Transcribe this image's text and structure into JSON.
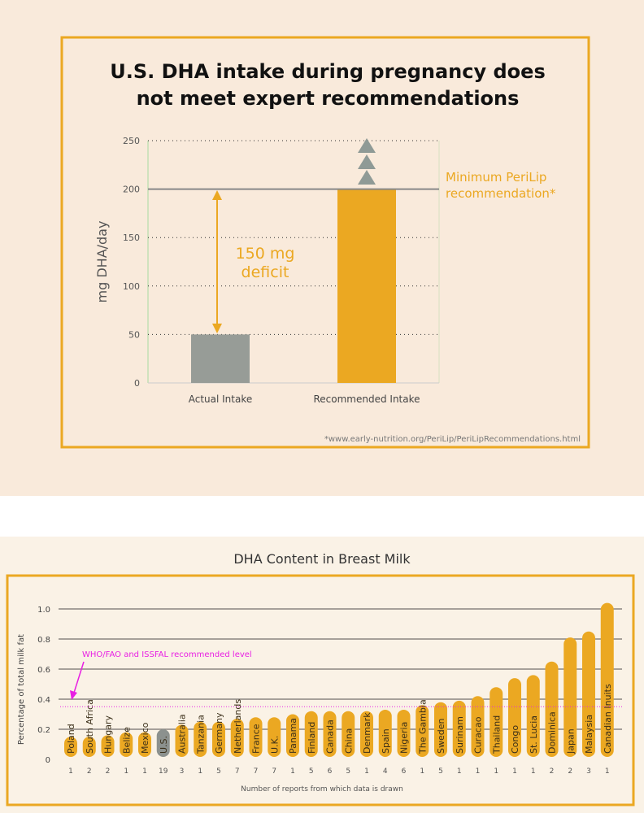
{
  "chart_data": [
    {
      "type": "bar",
      "title": "U.S. DHA intake during pregnancy does not meet expert recommendations",
      "title_lines": [
        "U.S. DHA intake during pregnancy does",
        "not meet expert recommendations"
      ],
      "ylabel": "mg DHA/day",
      "ylim": [
        0,
        250
      ],
      "yticks": [
        0,
        50,
        100,
        150,
        200,
        250
      ],
      "categories": [
        "Actual Intake",
        "Recommended Intake"
      ],
      "values": [
        50,
        200
      ],
      "colors": [
        "#979c97",
        "#eba822"
      ],
      "reference_line": {
        "value": 200,
        "label_lines": [
          "Minimum PeriLip",
          "recommendation*"
        ]
      },
      "annotation_lines": [
        "150 mg",
        "deficit"
      ],
      "footnote": "*www.early-nutrition.org/PeriLip/PeriLipRecommendations.html"
    },
    {
      "type": "bar",
      "title": "DHA Content in Breast Milk",
      "ylabel": "Percentage of total milk fat",
      "xlabel": "Number of reports from which data is drawn",
      "ylim": [
        0,
        1.0
      ],
      "yticks": [
        "0",
        "0.2",
        "0.4",
        "0.6",
        "0.8",
        "1.0"
      ],
      "categories": [
        "Poland",
        "South Africa",
        "Hungary",
        "Belize",
        "Mexico",
        "U.S.",
        "Australia",
        "Tanzania",
        "Germany",
        "Netherlands",
        "France",
        "U.K.",
        "Panama",
        "Finland",
        "Canada",
        "China",
        "Denmark",
        "Spain",
        "Nigeria",
        "The Gambia",
        "Sweden",
        "Surinam",
        "Curacao",
        "Thailand",
        "Congo",
        "St. Lucia",
        "Dominica",
        "Japan",
        "Malaysia",
        "Canadian Inuits"
      ],
      "values": [
        0.15,
        0.15,
        0.16,
        0.18,
        0.18,
        0.2,
        0.23,
        0.25,
        0.25,
        0.27,
        0.28,
        0.28,
        0.3,
        0.32,
        0.32,
        0.32,
        0.32,
        0.33,
        0.33,
        0.36,
        0.38,
        0.39,
        0.42,
        0.48,
        0.54,
        0.56,
        0.65,
        0.81,
        0.85,
        1.04
      ],
      "reports": [
        "1",
        "2",
        "2",
        "1",
        "1",
        "19",
        "3",
        "1",
        "5",
        "7",
        "7",
        "7",
        "1",
        "5",
        "6",
        "5",
        "1",
        "4",
        "6",
        "1",
        "5",
        "1",
        "1",
        "1",
        "1",
        "1",
        "2",
        "2",
        "3",
        "1"
      ],
      "highlight": "U.S.",
      "bar_color": "#eba822",
      "highlight_color": "#8c918e",
      "reference_line": {
        "value": 0.35,
        "label": "WHO/FAO and ISSFAL recommended level",
        "color": "#e81fe3"
      }
    }
  ]
}
